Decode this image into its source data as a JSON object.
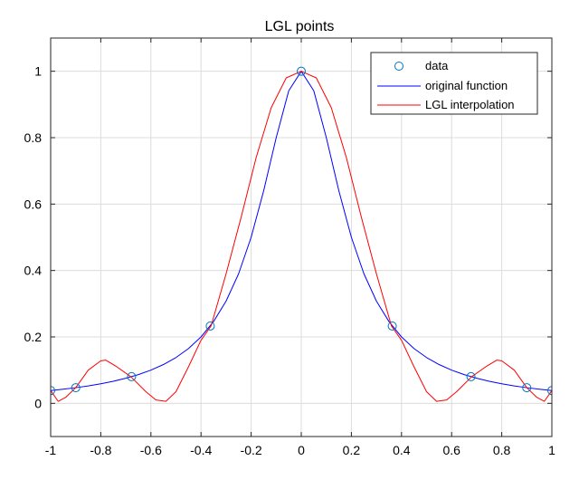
{
  "chart_data": {
    "type": "line",
    "title": "LGL points",
    "xlabel": "",
    "ylabel": "",
    "xlim": [
      -1,
      1
    ],
    "ylim": [
      -0.1,
      1.1
    ],
    "grid": true,
    "xticks": [
      -1,
      -0.8,
      -0.6,
      -0.4,
      -0.2,
      0,
      0.2,
      0.4,
      0.6,
      0.8,
      1
    ],
    "xtick_labels": [
      "-1",
      "-0.8",
      "-0.6",
      "-0.4",
      "-0.2",
      "0",
      "0.2",
      "0.4",
      "0.6",
      "0.8",
      "1"
    ],
    "yticks": [
      0,
      0.2,
      0.4,
      0.6,
      0.8,
      1
    ],
    "ytick_labels": [
      "0",
      "0.2",
      "0.4",
      "0.6",
      "0.8",
      "1"
    ],
    "legend": {
      "placement": "top-right",
      "entries": [
        "data",
        "original function",
        "LGL interpolation"
      ]
    },
    "series": [
      {
        "name": "data",
        "kind": "scatter",
        "marker": "circle",
        "color": "#0072BD",
        "x": [
          -1,
          -0.8998,
          -0.6772,
          -0.3631,
          0,
          0.3631,
          0.6772,
          0.8998,
          1
        ],
        "y": [
          0.0385,
          0.0471,
          0.0802,
          0.2328,
          1,
          0.2328,
          0.0802,
          0.0471,
          0.0385
        ]
      },
      {
        "name": "original function",
        "kind": "line",
        "color": "#0000ff",
        "x": [
          -1,
          -0.95,
          -0.9,
          -0.85,
          -0.8,
          -0.75,
          -0.7,
          -0.65,
          -0.6,
          -0.55,
          -0.5,
          -0.45,
          -0.4,
          -0.35,
          -0.3,
          -0.25,
          -0.2,
          -0.15,
          -0.1,
          -0.05,
          0,
          0.05,
          0.1,
          0.15,
          0.2,
          0.25,
          0.3,
          0.35,
          0.4,
          0.45,
          0.5,
          0.55,
          0.6,
          0.65,
          0.7,
          0.75,
          0.8,
          0.85,
          0.9,
          0.95,
          1
        ],
        "y": [
          0.0385,
          0.0424,
          0.0471,
          0.0525,
          0.0588,
          0.0664,
          0.0755,
          0.0865,
          0.1,
          0.1168,
          0.1379,
          0.1649,
          0.2,
          0.2462,
          0.3077,
          0.3902,
          0.5,
          0.64,
          0.8,
          0.9412,
          1,
          0.9412,
          0.8,
          0.64,
          0.5,
          0.3902,
          0.3077,
          0.2462,
          0.2,
          0.1649,
          0.1379,
          0.1168,
          0.1,
          0.0865,
          0.0755,
          0.0664,
          0.0588,
          0.0525,
          0.0471,
          0.0424,
          0.0385
        ]
      },
      {
        "name": "LGL interpolation",
        "kind": "line",
        "color": "#ff0000",
        "x": [
          -1,
          -0.97,
          -0.94,
          -0.9,
          -0.85,
          -0.8,
          -0.78,
          -0.74,
          -0.68,
          -0.62,
          -0.58,
          -0.54,
          -0.5,
          -0.45,
          -0.4,
          -0.36,
          -0.3,
          -0.24,
          -0.18,
          -0.12,
          -0.06,
          0,
          0.06,
          0.12,
          0.18,
          0.24,
          0.3,
          0.36,
          0.4,
          0.45,
          0.5,
          0.54,
          0.58,
          0.62,
          0.68,
          0.74,
          0.78,
          0.8,
          0.85,
          0.9,
          0.94,
          0.97,
          1
        ],
        "y": [
          0.0385,
          0.006,
          0.018,
          0.0471,
          0.1,
          0.128,
          0.13,
          0.112,
          0.0802,
          0.035,
          0.01,
          0.006,
          0.035,
          0.11,
          0.19,
          0.2328,
          0.39,
          0.56,
          0.74,
          0.89,
          0.98,
          1,
          0.98,
          0.89,
          0.74,
          0.56,
          0.39,
          0.2328,
          0.19,
          0.11,
          0.035,
          0.006,
          0.01,
          0.035,
          0.0802,
          0.112,
          0.13,
          0.128,
          0.1,
          0.0471,
          0.018,
          0.006,
          0.0385
        ]
      }
    ]
  }
}
